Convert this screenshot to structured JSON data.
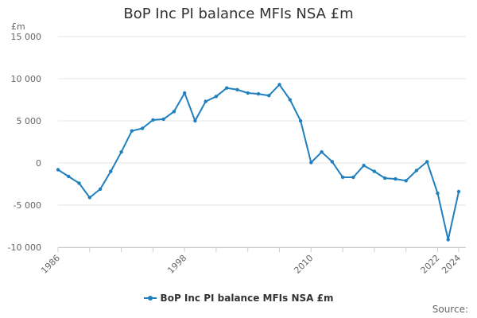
{
  "chart_data": {
    "type": "line",
    "title": "BoP Inc PI balance MFIs NSA £m",
    "ylabel": "£m",
    "xlabel": "",
    "x_tick_labels": [
      "1986",
      "1998",
      "2010",
      "2022",
      "2024"
    ],
    "y_tick_labels": [
      "15 000",
      "10 000",
      "5 000",
      "0",
      "-5 000",
      "-10 000"
    ],
    "y_ticks": [
      15000,
      10000,
      5000,
      0,
      -5000,
      -10000
    ],
    "ylim": [
      -10000,
      15000
    ],
    "xlim": [
      1986,
      2024
    ],
    "grid": true,
    "legend_position": "bottom",
    "series": [
      {
        "name": "BoP Inc PI balance MFIs NSA £m",
        "color": "#1f7fbf",
        "x": [
          1986,
          1987,
          1988,
          1989,
          1990,
          1991,
          1992,
          1993,
          1994,
          1995,
          1996,
          1997,
          1998,
          1999,
          2000,
          2001,
          2002,
          2003,
          2004,
          2005,
          2006,
          2007,
          2008,
          2009,
          2010,
          2011,
          2012,
          2013,
          2014,
          2015,
          2016,
          2017,
          2018,
          2019,
          2020,
          2021,
          2022,
          2023,
          2024
        ],
        "values": [
          -800,
          -1600,
          -2400,
          -4100,
          -3100,
          -1000,
          1300,
          3800,
          4100,
          5100,
          5200,
          6100,
          8300,
          5000,
          7300,
          7900,
          8900,
          8700,
          8300,
          8200,
          8000,
          9300,
          7500,
          5000,
          50,
          1300,
          150,
          -1700,
          -1700,
          -300,
          -1000,
          -1800,
          -1900,
          -2100,
          -900,
          150,
          -3600,
          -9100,
          -3400
        ]
      }
    ]
  },
  "legend_label": "BoP Inc PI balance MFIs NSA £m",
  "source_label": "Source:"
}
